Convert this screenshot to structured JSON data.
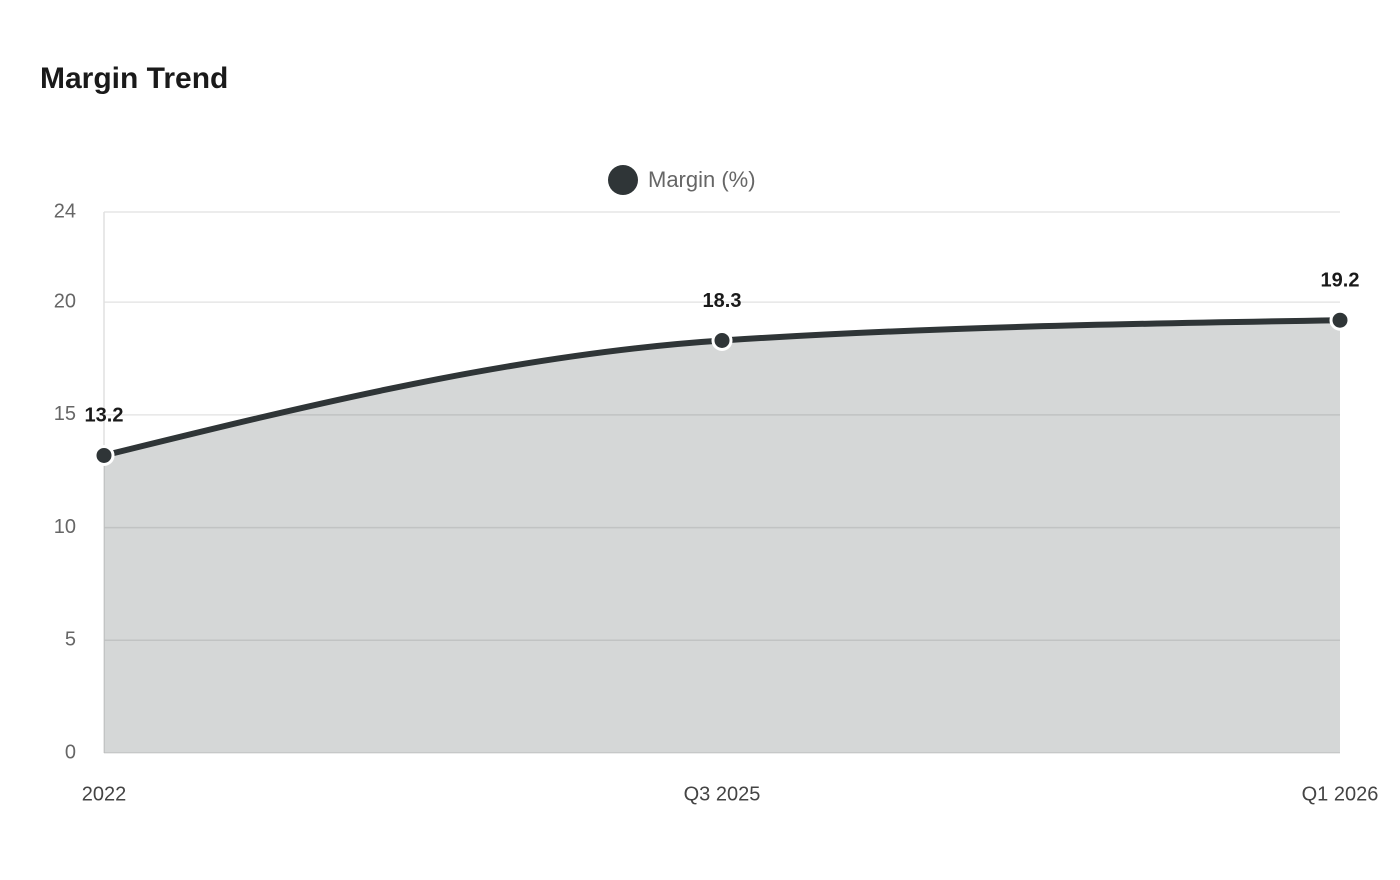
{
  "chart_data": {
    "type": "area",
    "title": "Margin Trend",
    "categories": [
      "2022",
      "Q3 2025",
      "Q1 2026"
    ],
    "series": [
      {
        "name": "Margin (%)",
        "color": "#2f3537",
        "values": [
          13.2,
          18.3,
          19.2
        ]
      }
    ],
    "ylim": [
      0,
      24
    ],
    "yticks": [
      0,
      5,
      10,
      15,
      20,
      24
    ],
    "grid": true,
    "legend": "top"
  }
}
